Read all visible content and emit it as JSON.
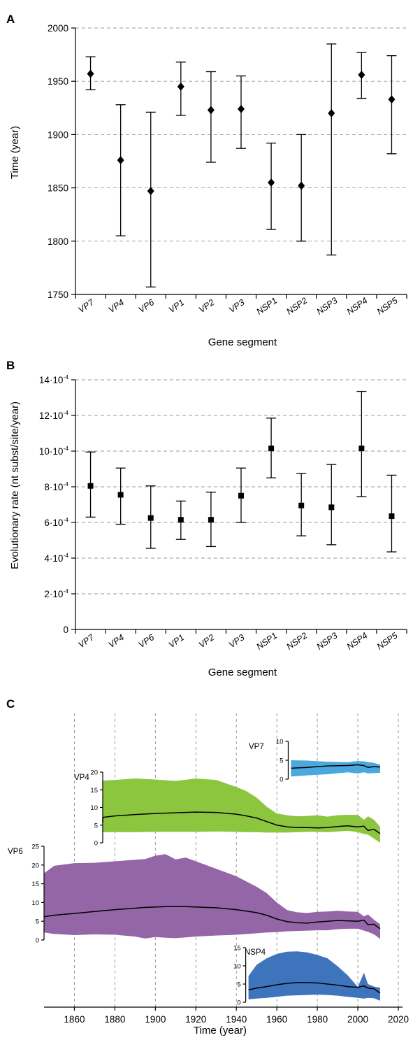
{
  "chart_data": [
    {
      "panel": "A",
      "type": "scatter",
      "title": "",
      "xlabel": "Gene segment",
      "ylabel": "Time (year)",
      "ylim": [
        1750,
        2000
      ],
      "yticks": [
        1750,
        1800,
        1850,
        1900,
        1950,
        2000
      ],
      "grid": true,
      "marker": "diamond",
      "categories": [
        "VP7",
        "VP4",
        "VP6",
        "VP1",
        "VP2",
        "VP3",
        "NSP1",
        "NSP2",
        "NSP3",
        "NSP4",
        "NSP5"
      ],
      "values": [
        1957,
        1876,
        1847,
        1945,
        1923,
        1924,
        1855,
        1852,
        1920,
        1956,
        1933
      ],
      "lower": [
        1942,
        1805,
        1757,
        1918,
        1874,
        1887,
        1811,
        1800,
        1787,
        1934,
        1882
      ],
      "upper": [
        1973,
        1928,
        1921,
        1968,
        1959,
        1955,
        1892,
        1900,
        1985,
        1977,
        1974
      ]
    },
    {
      "panel": "B",
      "type": "scatter",
      "title": "",
      "xlabel": "Gene segment",
      "ylabel": "Evolutionary rate (nt subst/site/year)",
      "ylim": [
        0,
        0.0014
      ],
      "ytick_labels": [
        {
          "mant": "0",
          "exp": ""
        },
        {
          "mant": "2·10",
          "exp": "-4"
        },
        {
          "mant": "4·10",
          "exp": "-4"
        },
        {
          "mant": "6·10",
          "exp": "-4"
        },
        {
          "mant": "8·10",
          "exp": "-4"
        },
        {
          "mant": "10·10",
          "exp": "-4"
        },
        {
          "mant": "12·10",
          "exp": "-4"
        },
        {
          "mant": "14·10",
          "exp": "-4"
        }
      ],
      "grid": true,
      "marker": "square",
      "categories": [
        "VP7",
        "VP4",
        "VP6",
        "VP1",
        "VP2",
        "VP3",
        "NSP1",
        "NSP2",
        "NSP3",
        "NSP4",
        "NSP5"
      ],
      "values": [
        0.000805,
        0.000755,
        0.000625,
        0.000615,
        0.000615,
        0.00075,
        0.001015,
        0.000695,
        0.000685,
        0.001015,
        0.000635
      ],
      "lower": [
        0.00063,
        0.00059,
        0.000455,
        0.000505,
        0.000465,
        0.0006,
        0.00085,
        0.000525,
        0.000475,
        0.000745,
        0.000435
      ],
      "upper": [
        0.000995,
        0.000905,
        0.000805,
        0.00072,
        0.00077,
        0.000905,
        0.001185,
        0.000875,
        0.000925,
        0.001335,
        0.000865
      ]
    },
    {
      "panel": "C",
      "type": "area",
      "title": "",
      "xlabel": "Time (year)",
      "xlim": [
        1845,
        2020
      ],
      "xticks": [
        1860,
        1880,
        1900,
        1920,
        1940,
        1960,
        1980,
        2000,
        2020
      ],
      "grid": true,
      "series": [
        {
          "name": "VP7",
          "color": "#4aa8dc",
          "ylim": [
            0,
            10
          ],
          "yticks": [
            0,
            5,
            10
          ],
          "x": [
            1967,
            1975,
            1985,
            1995,
            2000,
            2003,
            2005,
            2008,
            2011
          ],
          "lower": [
            0.7,
            1.0,
            1.3,
            1.8,
            1.5,
            1.8,
            1.5,
            1.6,
            1.7
          ],
          "upper": [
            5.0,
            4.9,
            4.6,
            4.5,
            4.8,
            4.7,
            4.5,
            4.3,
            3.8
          ],
          "median": [
            2.9,
            3.1,
            3.5,
            3.6,
            3.8,
            3.6,
            3.1,
            3.3,
            3.2
          ]
        },
        {
          "name": "VP4",
          "color": "#8cc63f",
          "ylim": [
            0,
            20
          ],
          "yticks": [
            0,
            5,
            10,
            15,
            20
          ],
          "x": [
            1845,
            1850,
            1860,
            1870,
            1880,
            1890,
            1900,
            1910,
            1920,
            1930,
            1940,
            1945,
            1950,
            1955,
            1960,
            1965,
            1970,
            1975,
            1980,
            1985,
            1990,
            1995,
            2000,
            2003,
            2005,
            2008,
            2011
          ],
          "lower": [
            3.0,
            2.8,
            2.9,
            3.0,
            3.0,
            3.0,
            3.1,
            3.1,
            3.1,
            3.2,
            3.1,
            3.0,
            3.0,
            2.9,
            2.9,
            2.9,
            3.0,
            3.1,
            3.1,
            3.0,
            3.2,
            3.4,
            3.0,
            2.5,
            2.3,
            1.2,
            0.0
          ],
          "upper": [
            16.5,
            17.5,
            17.2,
            17.6,
            17.8,
            18.2,
            17.9,
            17.5,
            18.2,
            17.8,
            15.8,
            14.6,
            12.8,
            10.2,
            8.3,
            7.8,
            7.5,
            7.6,
            7.8,
            7.4,
            7.8,
            7.9,
            7.9,
            6.5,
            7.5,
            6.5,
            4.5
          ],
          "median": [
            5.7,
            6.0,
            6.6,
            7.2,
            7.6,
            8.0,
            8.3,
            8.5,
            8.7,
            8.6,
            8.1,
            7.6,
            7.0,
            6.0,
            5.0,
            4.5,
            4.3,
            4.3,
            4.2,
            4.3,
            4.6,
            4.8,
            4.5,
            4.7,
            3.5,
            3.8,
            2.6
          ]
        },
        {
          "name": "VP6",
          "color": "#9466a8",
          "ylim": [
            0,
            25
          ],
          "yticks": [
            0,
            5,
            10,
            15,
            20,
            25
          ],
          "x": [
            1845,
            1850,
            1860,
            1870,
            1880,
            1890,
            1895,
            1900,
            1905,
            1910,
            1915,
            1920,
            1930,
            1940,
            1950,
            1955,
            1960,
            1965,
            1970,
            1975,
            1980,
            1985,
            1990,
            1995,
            2000,
            2003,
            2005,
            2008,
            2011
          ],
          "lower": [
            2.0,
            1.6,
            1.3,
            1.5,
            1.4,
            0.9,
            0.4,
            0.8,
            0.6,
            0.5,
            0.7,
            0.9,
            1.2,
            1.4,
            1.8,
            2.0,
            2.1,
            2.3,
            2.4,
            2.5,
            2.6,
            2.6,
            2.9,
            3.0,
            3.0,
            2.5,
            2.2,
            1.5,
            0.3
          ],
          "upper": [
            17.8,
            19.8,
            20.5,
            20.6,
            21.0,
            21.4,
            21.6,
            22.5,
            22.9,
            21.5,
            22.0,
            21.0,
            19.0,
            17.0,
            14.2,
            12.5,
            10.0,
            8.0,
            7.4,
            7.2,
            7.5,
            7.6,
            7.8,
            7.6,
            7.5,
            6.3,
            6.8,
            5.4,
            4.2
          ],
          "median": [
            6.2,
            6.6,
            7.1,
            7.6,
            8.1,
            8.5,
            8.7,
            8.8,
            8.9,
            8.9,
            8.9,
            8.8,
            8.6,
            8.1,
            7.3,
            6.6,
            5.6,
            4.9,
            4.6,
            4.5,
            4.8,
            5.0,
            5.2,
            5.1,
            5.0,
            5.3,
            4.1,
            4.2,
            3.0
          ]
        },
        {
          "name": "NSP4",
          "color": "#3e74bc",
          "ylim": [
            0,
            15
          ],
          "yticks": [
            0,
            5,
            10,
            15
          ],
          "x": [
            1946,
            1950,
            1955,
            1960,
            1965,
            1970,
            1975,
            1980,
            1985,
            1990,
            1995,
            2000,
            2003,
            2005,
            2008,
            2011
          ],
          "lower": [
            0.8,
            1.0,
            1.2,
            1.5,
            1.8,
            1.9,
            2.0,
            2.1,
            2.0,
            1.8,
            1.5,
            1.2,
            1.0,
            1.2,
            1.1,
            0.4
          ],
          "upper": [
            7.2,
            10.3,
            12.1,
            13.3,
            13.9,
            14.0,
            13.7,
            13.0,
            12.1,
            9.9,
            7.4,
            4.2,
            8.1,
            5.0,
            4.3,
            4.0
          ],
          "median": [
            3.4,
            3.9,
            4.3,
            4.8,
            5.2,
            5.4,
            5.4,
            5.3,
            5.0,
            4.7,
            4.3,
            4.1,
            4.5,
            3.9,
            3.7,
            2.5
          ]
        }
      ]
    }
  ],
  "panel_letters": [
    "A",
    "B",
    "C"
  ],
  "labels": {
    "a_xlabel": "Gene segment",
    "a_ylabel": "Time (year)",
    "b_xlabel": "Gene segment",
    "b_ylabel": "Evolutionary rate (nt subst/site/year)",
    "c_xlabel": "Time (year)"
  }
}
